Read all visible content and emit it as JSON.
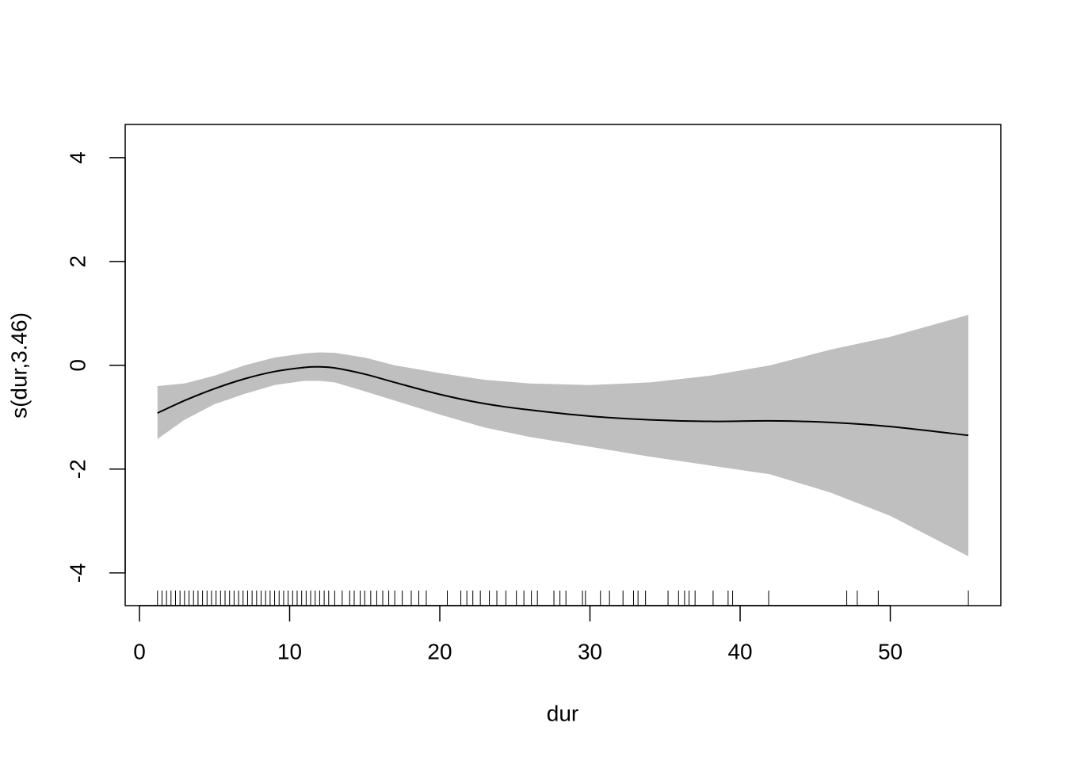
{
  "chart_data": {
    "type": "smooth",
    "x_label": "dur",
    "y_label": "s(dur,3.46)",
    "x": [
      1.2,
      3,
      5,
      7,
      9,
      11,
      12,
      13,
      15,
      17,
      20,
      23,
      26,
      30,
      34,
      38,
      42,
      46,
      50,
      55.2
    ],
    "values": [
      -0.92,
      -0.68,
      -0.45,
      -0.26,
      -0.12,
      -0.04,
      -0.03,
      -0.05,
      -0.17,
      -0.33,
      -0.56,
      -0.74,
      -0.86,
      -0.98,
      -1.05,
      -1.08,
      -1.07,
      -1.1,
      -1.18,
      -1.35
    ],
    "upper": [
      -0.4,
      -0.35,
      -0.2,
      0.0,
      0.15,
      0.23,
      0.25,
      0.24,
      0.15,
      0.0,
      -0.15,
      -0.28,
      -0.35,
      -0.38,
      -0.33,
      -0.2,
      0.0,
      0.3,
      0.55,
      0.97
    ],
    "lower": [
      -1.42,
      -1.05,
      -0.75,
      -0.55,
      -0.38,
      -0.3,
      -0.3,
      -0.33,
      -0.5,
      -0.68,
      -0.95,
      -1.2,
      -1.38,
      -1.57,
      -1.76,
      -1.93,
      -2.1,
      -2.45,
      -2.9,
      -3.68
    ],
    "rug": [
      1.2,
      1.5,
      1.8,
      2.1,
      2.4,
      2.7,
      3,
      3.3,
      3.6,
      3.9,
      4.2,
      4.5,
      4.8,
      5.1,
      5.4,
      5.7,
      6,
      6.3,
      6.6,
      6.9,
      7.2,
      7.5,
      7.8,
      8.1,
      8.4,
      8.7,
      9,
      9.3,
      9.6,
      9.9,
      10.2,
      10.5,
      10.8,
      11.1,
      11.4,
      11.7,
      12,
      12.3,
      12.6,
      13,
      13.5,
      14,
      14.3,
      14.7,
      15,
      15.4,
      15.8,
      16.2,
      16.6,
      17,
      17.5,
      18.1,
      18.6,
      19.1,
      20.5,
      21.4,
      21.8,
      22.2,
      22.7,
      23.3,
      23.8,
      24.4,
      25.1,
      25.6,
      26.1,
      26.5,
      27.6,
      28,
      28.4,
      29.5,
      29.7,
      30.7,
      31.3,
      32.2,
      32.9,
      33.2,
      33.7,
      35.2,
      35.9,
      36.3,
      36.6,
      37,
      38.2,
      39.2,
      39.5,
      41.9,
      47.1,
      47.8,
      49.2,
      55.2
    ],
    "color": "#000000",
    "band_color": "#bfbfbf",
    "xlim": [
      -0.95,
      57.36
    ],
    "ylim": [
      -4.63,
      4.64
    ],
    "xticks": [
      0,
      10,
      20,
      30,
      40,
      50
    ],
    "yticks": [
      -4,
      -2,
      0,
      2,
      4
    ]
  }
}
